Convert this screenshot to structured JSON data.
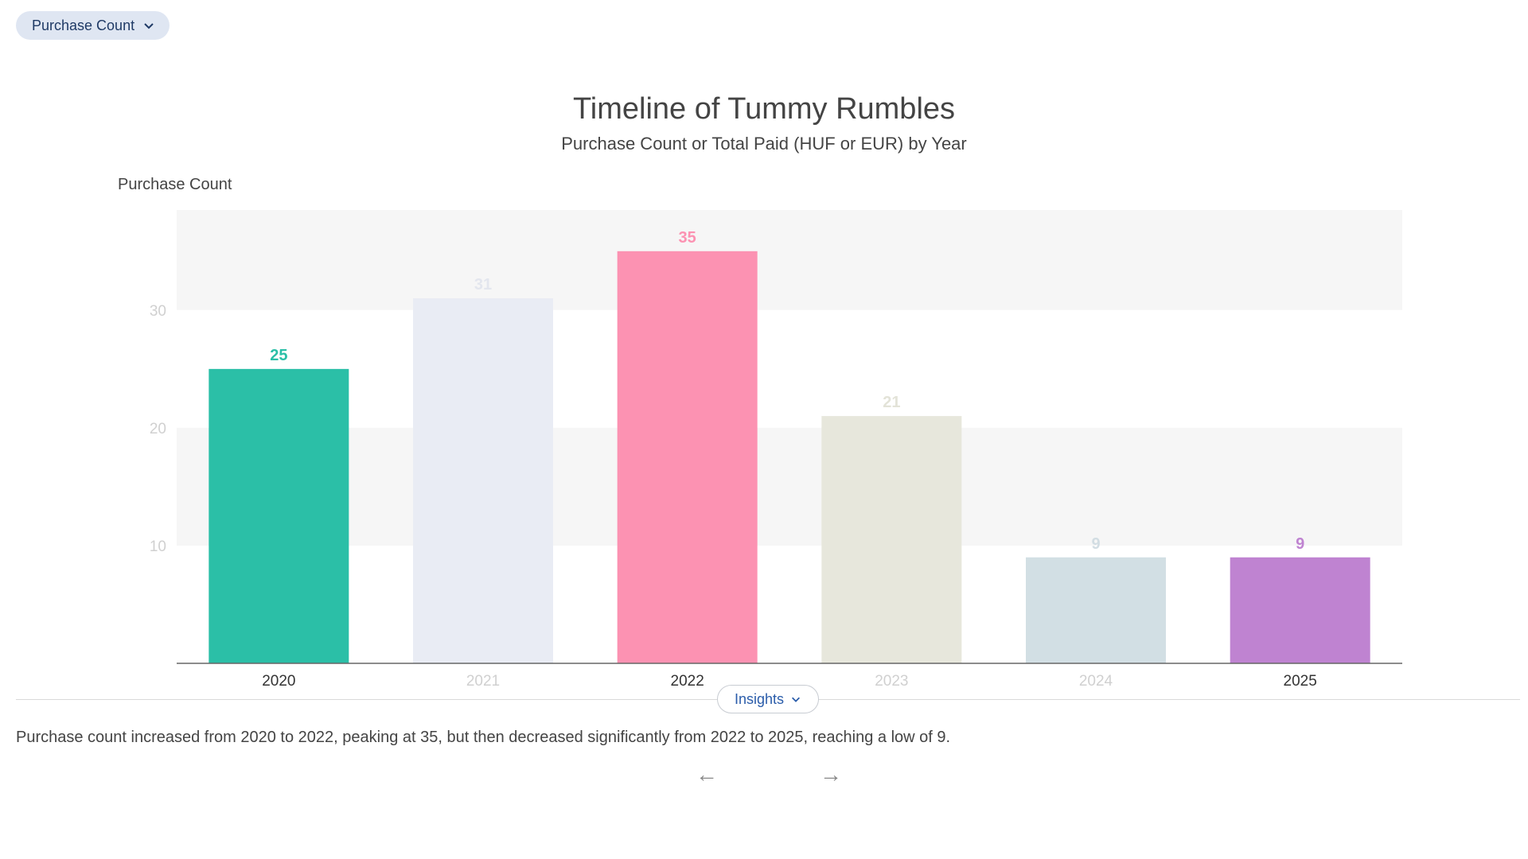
{
  "controls": {
    "metric_label": "Purchase Count",
    "insights_label": "Insights",
    "prev_arrow": "←",
    "next_arrow": "→"
  },
  "insight": {
    "text": "Purchase count increased from 2020 to 2022, peaking at 35, but then decreased significantly from 2022 to 2025, reaching a low of 9."
  },
  "chart_data": {
    "type": "bar",
    "title": "Timeline of Tummy Rumbles",
    "subtitle": "Purchase Count or Total Paid (HUF or EUR) by Year",
    "xlabel": "",
    "ylabel": "Purchase Count",
    "categories": [
      "2020",
      "2021",
      "2022",
      "2023",
      "2024",
      "2025"
    ],
    "values": [
      25,
      31,
      35,
      21,
      9,
      9
    ],
    "ylim": [
      0,
      38.5
    ],
    "yticks": [
      10,
      20,
      30
    ],
    "grid": "alternating horizontal bands",
    "legend": "none",
    "bar_colors": [
      "#2bbfa7",
      "#e9ecf4",
      "#fc92b2",
      "#e7e7dc",
      "#d2dfe4",
      "#bf83d1"
    ],
    "label_colors": [
      "#2bbfa7",
      "#e3e6ee",
      "#fc92b2",
      "#e3e3d8",
      "#d2dde3",
      "#bf83d1"
    ],
    "tick_label_colors": [
      "#333333",
      "#d0d0d0",
      "#333333",
      "#d0d0d0",
      "#d0d0d0",
      "#333333"
    ],
    "band_color": "#f6f6f6",
    "axis_color": "#666666",
    "ytick_color": "#d0d0d0"
  }
}
